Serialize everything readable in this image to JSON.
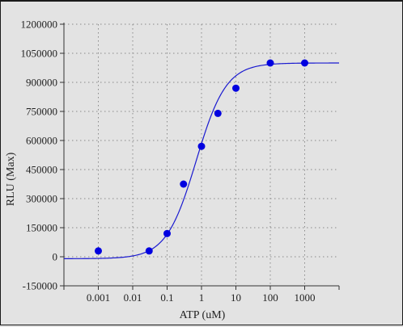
{
  "chart_data": {
    "type": "scatter",
    "title": "",
    "xlabel": "ATP (uM)",
    "ylabel": "RLU (Max)",
    "x_scale": "log",
    "xlim": [
      0.0001,
      10000
    ],
    "ylim": [
      -150000,
      1200000
    ],
    "grid": true,
    "x_ticks": [
      0.001,
      0.01,
      0.1,
      1,
      10,
      100,
      1000
    ],
    "x_tick_labels": [
      "0.001",
      "0.01",
      "0.1",
      "1",
      "10",
      "100",
      "1000"
    ],
    "y_ticks": [
      -150000,
      0,
      150000,
      300000,
      450000,
      600000,
      750000,
      900000,
      1050000,
      1200000
    ],
    "y_tick_labels": [
      "-150000",
      "0",
      "150000",
      "300000",
      "450000",
      "600000",
      "750000",
      "900000",
      "1050000",
      "1200000"
    ],
    "series": [
      {
        "type": "scatter",
        "color": "#0000e0",
        "points": [
          {
            "x": 0.001,
            "y": 30000
          },
          {
            "x": 0.03,
            "y": 30000
          },
          {
            "x": 0.1,
            "y": 120000
          },
          {
            "x": 0.3,
            "y": 375000
          },
          {
            "x": 1,
            "y": 570000
          },
          {
            "x": 3,
            "y": 740000
          },
          {
            "x": 10,
            "y": 870000
          },
          {
            "x": 100,
            "y": 1000000
          },
          {
            "x": 1000,
            "y": 1000000
          }
        ]
      },
      {
        "type": "line",
        "color": "#1a1ad0",
        "fit": {
          "model": "four-parameter logistic",
          "bottom": -10000,
          "top": 1000000,
          "ec50": 0.7,
          "hill": 1.0
        }
      }
    ]
  }
}
